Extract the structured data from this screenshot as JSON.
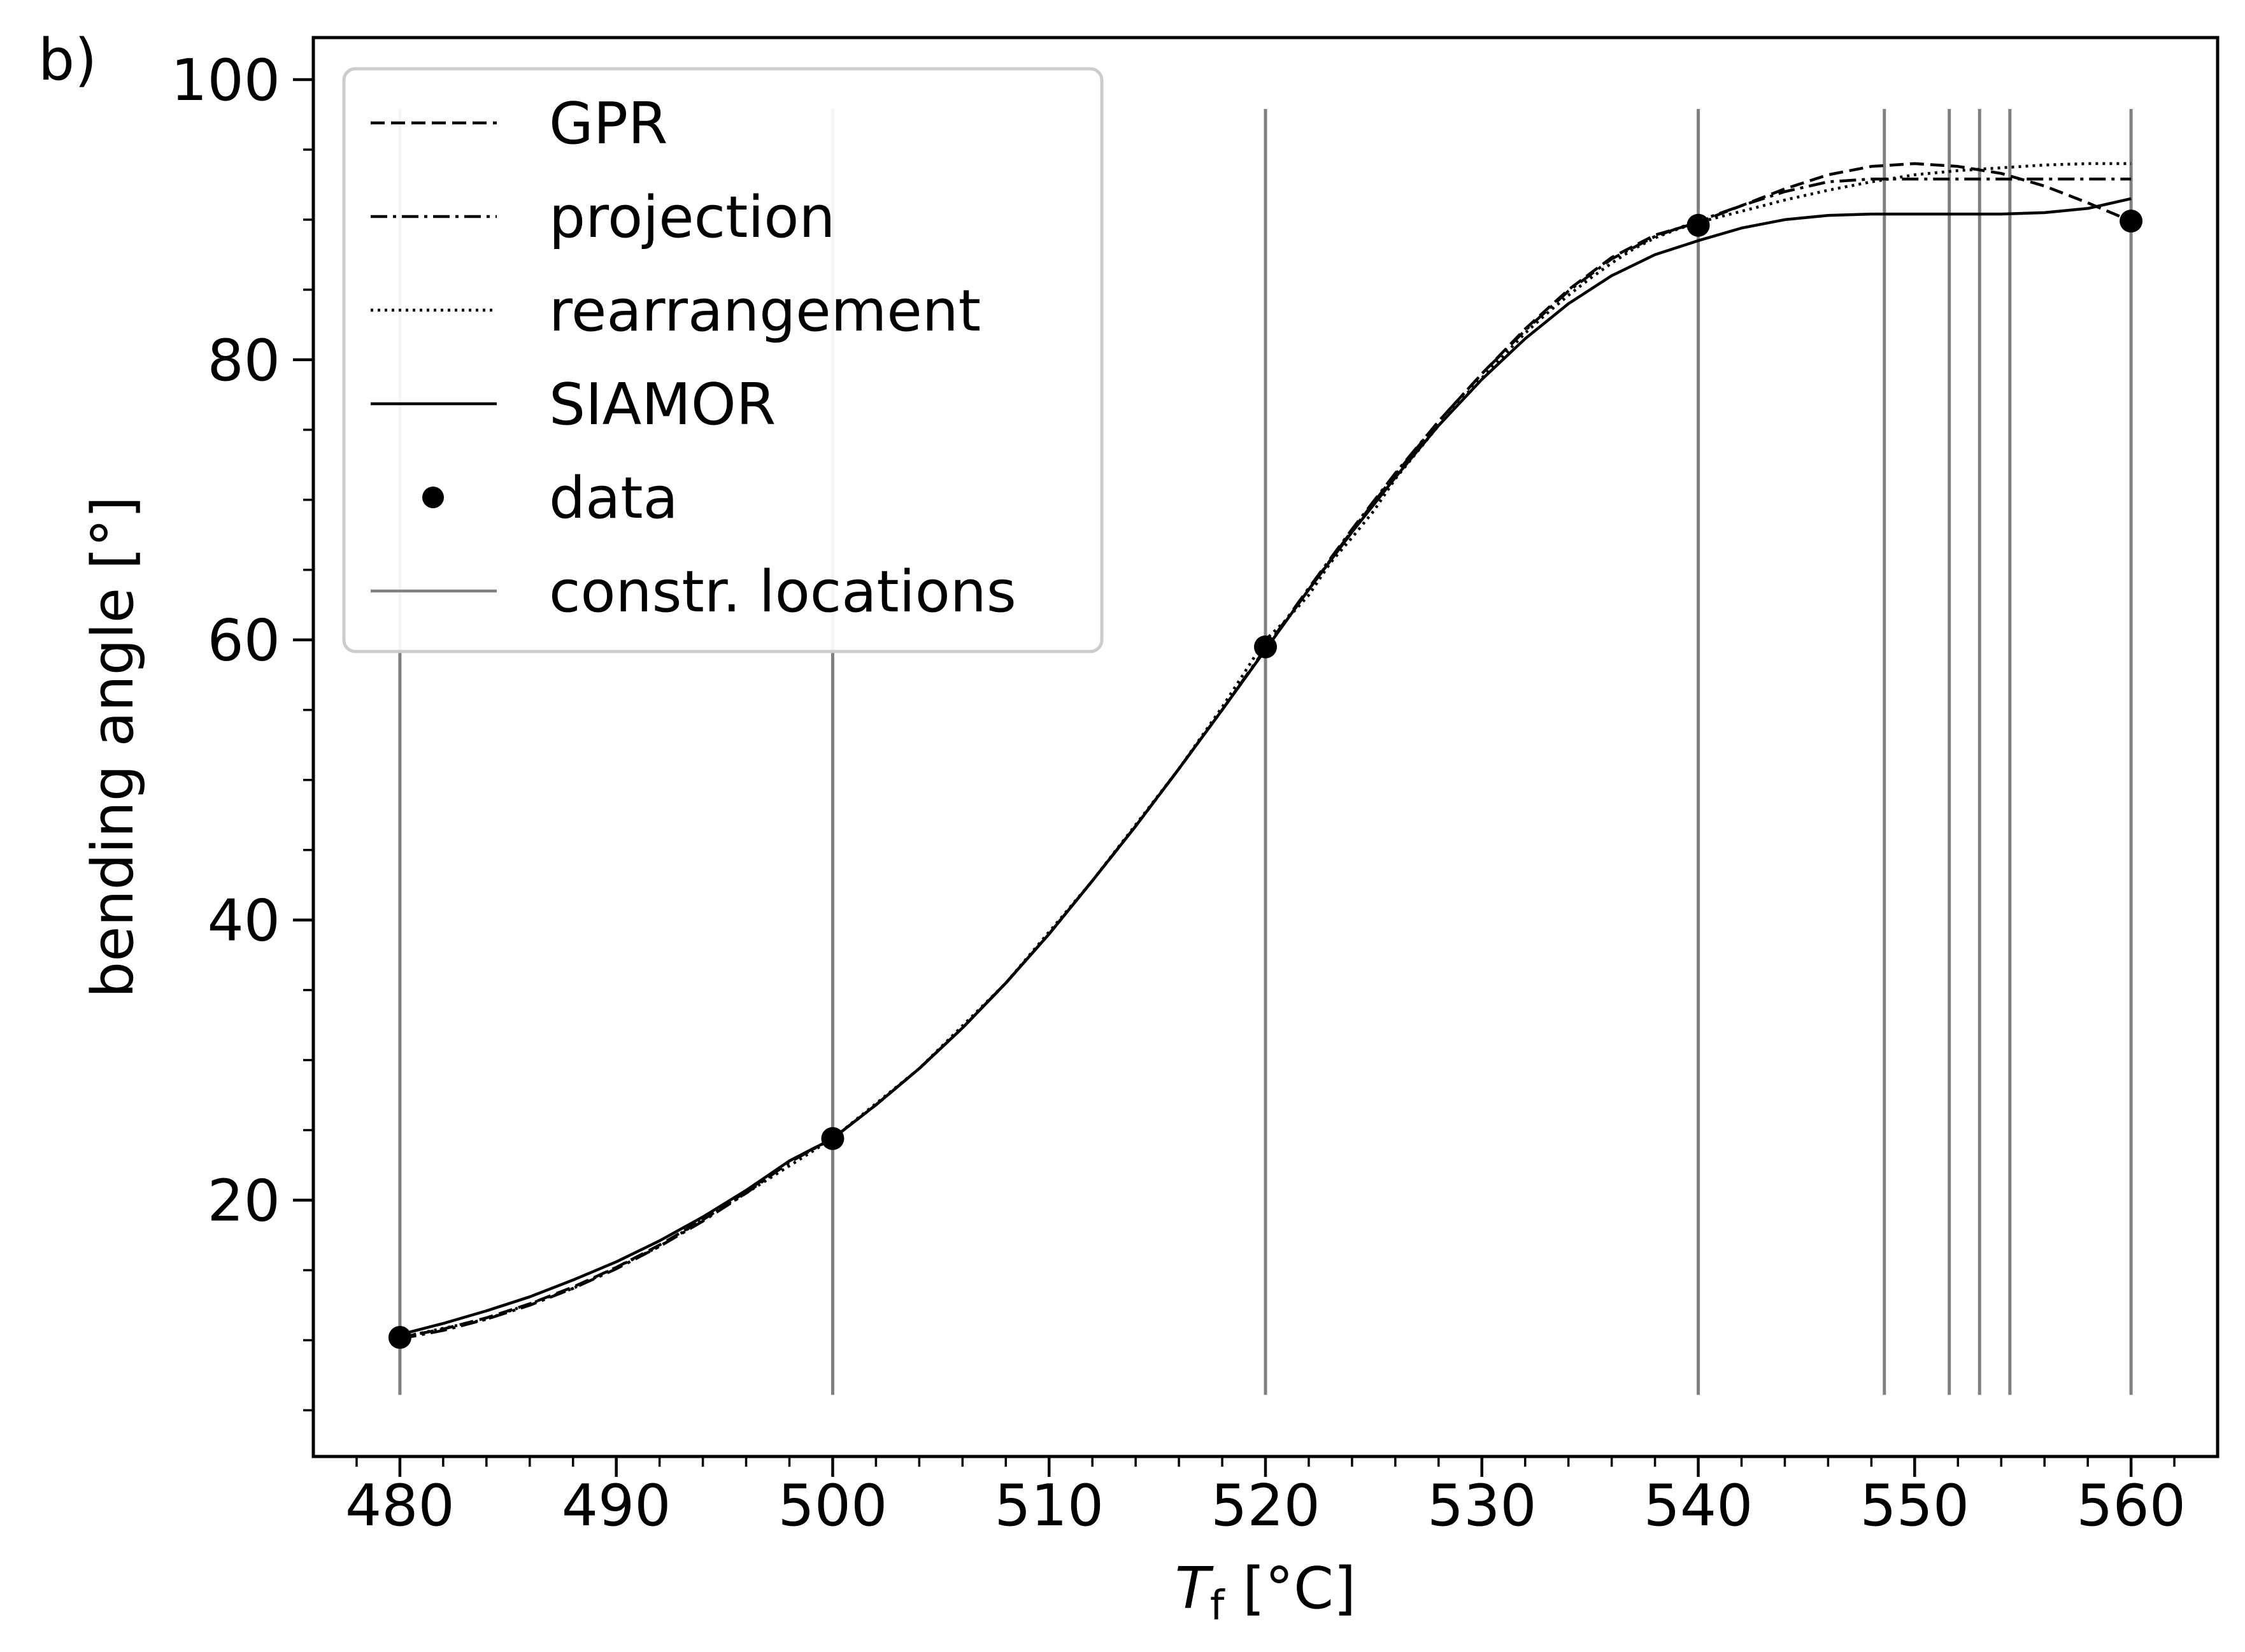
{
  "panel_label": "b)",
  "chart_data": {
    "type": "line",
    "xlabel": "T",
    "xlabel_subscript": "f",
    "xlabel_unit": " [°C]",
    "ylabel": "bending angle [°]",
    "xlim": [
      476,
      564
    ],
    "ylim": [
      1.7,
      103
    ],
    "xticks": [
      480,
      490,
      500,
      510,
      520,
      530,
      540,
      550,
      560
    ],
    "yticks": [
      20,
      40,
      60,
      80,
      100
    ],
    "legend_position": "top-left",
    "constraint_locations": [
      480,
      500,
      520,
      540,
      548.6,
      551.6,
      553,
      554.4,
      560
    ],
    "series": [
      {
        "name": "GPR",
        "style": "dashed",
        "color": "#000000",
        "x": [
          480,
          482,
          484,
          486,
          488,
          490,
          492,
          494,
          496,
          498,
          500,
          502,
          504,
          506,
          508,
          510,
          512,
          514,
          516,
          518,
          520,
          522,
          524,
          526,
          528,
          530,
          532,
          534,
          536,
          538,
          540,
          542,
          544,
          546,
          548,
          550,
          552,
          554,
          556,
          558,
          560
        ],
        "y": [
          10.2,
          10.8,
          11.6,
          12.6,
          13.8,
          15.2,
          16.8,
          18.6,
          20.6,
          22.8,
          24.4,
          26.8,
          29.4,
          32.3,
          35.5,
          39.0,
          42.8,
          46.7,
          50.8,
          55.0,
          59.3,
          63.6,
          67.8,
          71.8,
          75.6,
          79.0,
          82.2,
          85.0,
          87.3,
          88.9,
          89.8,
          91.0,
          92.2,
          93.2,
          93.8,
          94.0,
          93.8,
          93.3,
          92.4,
          91.2,
          89.9
        ]
      },
      {
        "name": "projection",
        "style": "dashdot",
        "color": "#000000",
        "x": [
          480,
          482,
          484,
          486,
          488,
          490,
          492,
          494,
          496,
          498,
          500,
          502,
          504,
          506,
          508,
          510,
          512,
          514,
          516,
          518,
          520,
          522,
          524,
          526,
          528,
          530,
          532,
          534,
          536,
          538,
          540,
          542,
          544,
          546,
          548,
          550,
          552,
          554,
          556,
          558,
          560
        ],
        "y": [
          10.1,
          10.7,
          11.5,
          12.5,
          13.7,
          15.1,
          16.7,
          18.5,
          20.5,
          22.7,
          24.4,
          26.8,
          29.4,
          32.3,
          35.5,
          39.0,
          42.8,
          46.7,
          50.8,
          55.0,
          59.4,
          63.7,
          67.9,
          71.9,
          75.6,
          79.0,
          82.1,
          84.9,
          87.2,
          88.8,
          89.9,
          91.0,
          92.0,
          92.7,
          92.9,
          92.9,
          92.9,
          92.9,
          92.9,
          92.9,
          92.9
        ]
      },
      {
        "name": "rearrangement",
        "style": "dotted",
        "color": "#000000",
        "x": [
          480,
          484,
          488,
          492,
          496,
          500,
          504,
          508,
          512,
          516,
          518,
          520,
          521,
          522,
          523,
          524,
          525,
          526,
          527,
          528,
          529,
          530,
          531,
          532,
          533,
          534,
          535,
          536,
          537,
          538,
          539,
          540,
          542,
          544,
          546,
          548,
          550,
          552,
          554,
          556,
          558,
          560
        ],
        "y": [
          10.2,
          11.5,
          13.7,
          16.7,
          20.5,
          24.4,
          29.4,
          35.5,
          42.8,
          50.8,
          55.2,
          60.0,
          61.5,
          63.2,
          65.5,
          67.3,
          69.2,
          71.5,
          73.4,
          75.3,
          77.1,
          78.7,
          80.3,
          81.9,
          83.3,
          84.6,
          85.8,
          86.9,
          87.9,
          88.7,
          89.3,
          89.8,
          90.6,
          91.4,
          92.1,
          92.7,
          93.2,
          93.5,
          93.7,
          93.9,
          94.0,
          94.0
        ]
      },
      {
        "name": "SIAMOR",
        "style": "solid",
        "color": "#000000",
        "x": [
          480,
          482,
          484,
          486,
          488,
          490,
          492,
          494,
          496,
          498,
          500,
          502,
          504,
          506,
          508,
          510,
          512,
          514,
          516,
          518,
          520,
          522,
          524,
          526,
          528,
          530,
          532,
          534,
          536,
          538,
          540,
          542,
          544,
          546,
          548,
          550,
          552,
          554,
          556,
          558,
          560
        ],
        "y": [
          10.4,
          11.2,
          12.1,
          13.1,
          14.3,
          15.6,
          17.1,
          18.8,
          20.7,
          22.8,
          24.4,
          26.8,
          29.4,
          32.3,
          35.5,
          39.0,
          42.8,
          46.7,
          50.8,
          55.0,
          59.3,
          63.6,
          67.7,
          71.6,
          75.3,
          78.6,
          81.5,
          84.0,
          86.0,
          87.5,
          88.5,
          89.4,
          90.0,
          90.3,
          90.4,
          90.4,
          90.4,
          90.4,
          90.5,
          90.8,
          91.5
        ]
      },
      {
        "name": "data",
        "style": "markers",
        "color": "#000000",
        "x": [
          480,
          500,
          520,
          540,
          560
        ],
        "y": [
          10.2,
          24.4,
          59.5,
          89.6,
          89.9
        ]
      }
    ],
    "legend_extra": {
      "name": "constr. locations",
      "color": "#808080"
    }
  }
}
